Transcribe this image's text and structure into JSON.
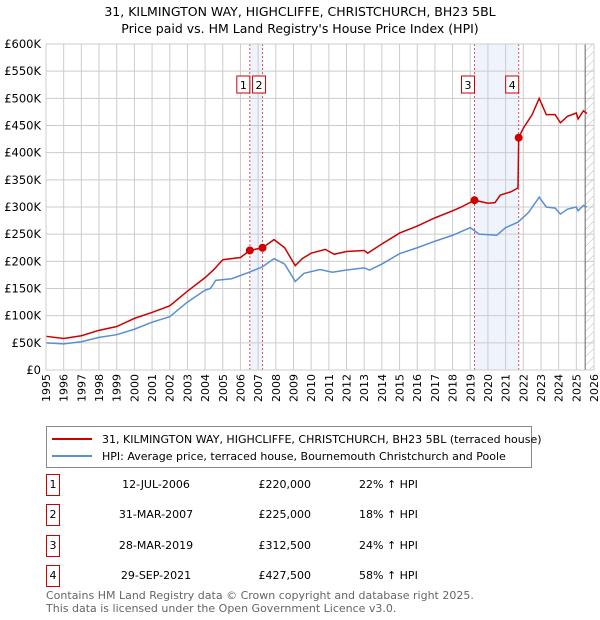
{
  "title": "31, KILMINGTON WAY, HIGHCLIFFE, CHRISTCHURCH, BH23 5BL",
  "subtitle": "Price paid vs. HM Land Registry's House Price Index (HPI)",
  "colors": {
    "property": "#cc0000",
    "hpi": "#5b8fd0",
    "band": "#eef3fc"
  },
  "chart_data": {
    "type": "line",
    "title": "31, KILMINGTON WAY, HIGHCLIFFE, CHRISTCHURCH, BH23 5BL",
    "xlabel": "",
    "ylabel": "",
    "xlim": [
      1995,
      2026
    ],
    "ylim": [
      0,
      600000
    ],
    "xticks": [
      "1995",
      "1996",
      "1997",
      "1998",
      "1999",
      "2000",
      "2001",
      "2002",
      "2003",
      "2004",
      "2005",
      "2006",
      "2007",
      "2008",
      "2009",
      "2010",
      "2011",
      "2012",
      "2013",
      "2014",
      "2015",
      "2016",
      "2017",
      "2018",
      "2019",
      "2020",
      "2021",
      "2022",
      "2023",
      "2024",
      "2025",
      "2026"
    ],
    "yticks": [
      "£0",
      "£50K",
      "£100K",
      "£150K",
      "£200K",
      "£250K",
      "£300K",
      "£350K",
      "£400K",
      "£450K",
      "£500K",
      "£550K",
      "£600K"
    ],
    "grid": true,
    "series": [
      {
        "name": "31, KILMINGTON WAY, HIGHCLIFFE, CHRISTCHURCH, BH23 5BL (terraced house)",
        "x": [
          1995,
          1996,
          1997,
          1998,
          1999,
          2000,
          2001,
          2002,
          2003,
          2004,
          2004.5,
          2005,
          2006,
          2006.53,
          2007.25,
          2007.9,
          2008.5,
          2009.1,
          2009.5,
          2010,
          2010.8,
          2011.3,
          2012,
          2013,
          2013.2,
          2014,
          2015,
          2016,
          2017,
          2018,
          2018.5,
          2019.24,
          2020,
          2020.4,
          2020.7,
          2021.3,
          2021.7,
          2021.74,
          2022,
          2022.5,
          2022.9,
          2023.3,
          2023.8,
          2024.1,
          2024.5,
          2025,
          2025.1,
          2025.4,
          2025.6
        ],
        "values": [
          62000,
          58000,
          63000,
          73000,
          80000,
          95000,
          106000,
          118000,
          145000,
          170000,
          185000,
          203000,
          207000,
          220000,
          225000,
          240000,
          225000,
          192000,
          205000,
          215000,
          222000,
          213000,
          218000,
          220000,
          215000,
          232000,
          252000,
          265000,
          280000,
          293000,
          300000,
          312500,
          307000,
          308000,
          322000,
          328000,
          335000,
          427500,
          445000,
          470000,
          500000,
          470000,
          470000,
          455000,
          467000,
          473000,
          462000,
          477000,
          472000
        ]
      },
      {
        "name": "HPI: Average price, terraced house, Bournemouth Christchurch and Poole",
        "x": [
          1995,
          1996,
          1997,
          1998,
          1999,
          2000,
          2001,
          2002,
          2003,
          2004,
          2004.3,
          2004.6,
          2005.5,
          2006.5,
          2007.25,
          2007.9,
          2008.5,
          2009.1,
          2009.6,
          2010.5,
          2011.2,
          2012,
          2013,
          2013.3,
          2014,
          2015,
          2016,
          2017,
          2018,
          2019,
          2019.5,
          2020.5,
          2021,
          2021.7,
          2022.3,
          2022.9,
          2023.3,
          2023.8,
          2024.1,
          2024.5,
          2025,
          2025.1,
          2025.4,
          2025.6
        ],
        "values": [
          50000,
          48000,
          52000,
          60000,
          65000,
          75000,
          88000,
          98000,
          125000,
          147000,
          150000,
          165000,
          168000,
          180000,
          190000,
          205000,
          195000,
          163000,
          178000,
          185000,
          180000,
          184000,
          188000,
          184000,
          195000,
          214000,
          225000,
          237000,
          248000,
          262000,
          250000,
          248000,
          262000,
          272000,
          290000,
          318000,
          300000,
          298000,
          287000,
          296000,
          300000,
          293000,
          303000,
          300000
        ]
      }
    ],
    "sales": [
      {
        "label": "1",
        "x": 2006.53,
        "value": 220000
      },
      {
        "label": "2",
        "x": 2007.25,
        "value": 225000
      },
      {
        "label": "3",
        "x": 2019.24,
        "value": 312500
      },
      {
        "label": "4",
        "x": 2021.74,
        "value": 427500
      }
    ],
    "bands": [
      [
        2006.53,
        2007.25
      ],
      [
        2019.24,
        2021.74
      ]
    ],
    "forecast_from": 2025.5,
    "legend": "below"
  },
  "legend": {
    "property": "31, KILMINGTON WAY, HIGHCLIFFE, CHRISTCHURCH, BH23 5BL (terraced house)",
    "hpi": "HPI: Average price, terraced house, Bournemouth Christchurch and Poole"
  },
  "table": [
    {
      "num": "1",
      "date": "12-JUL-2006",
      "price": "£220,000",
      "hpi": "22% ↑ HPI"
    },
    {
      "num": "2",
      "date": "31-MAR-2007",
      "price": "£225,000",
      "hpi": "18% ↑ HPI"
    },
    {
      "num": "3",
      "date": "28-MAR-2019",
      "price": "£312,500",
      "hpi": "24% ↑ HPI"
    },
    {
      "num": "4",
      "date": "29-SEP-2021",
      "price": "£427,500",
      "hpi": "58% ↑ HPI"
    }
  ],
  "footer": {
    "line1": "Contains HM Land Registry data © Crown copyright and database right 2025.",
    "line2": "This data is licensed under the Open Government Licence v3.0."
  }
}
